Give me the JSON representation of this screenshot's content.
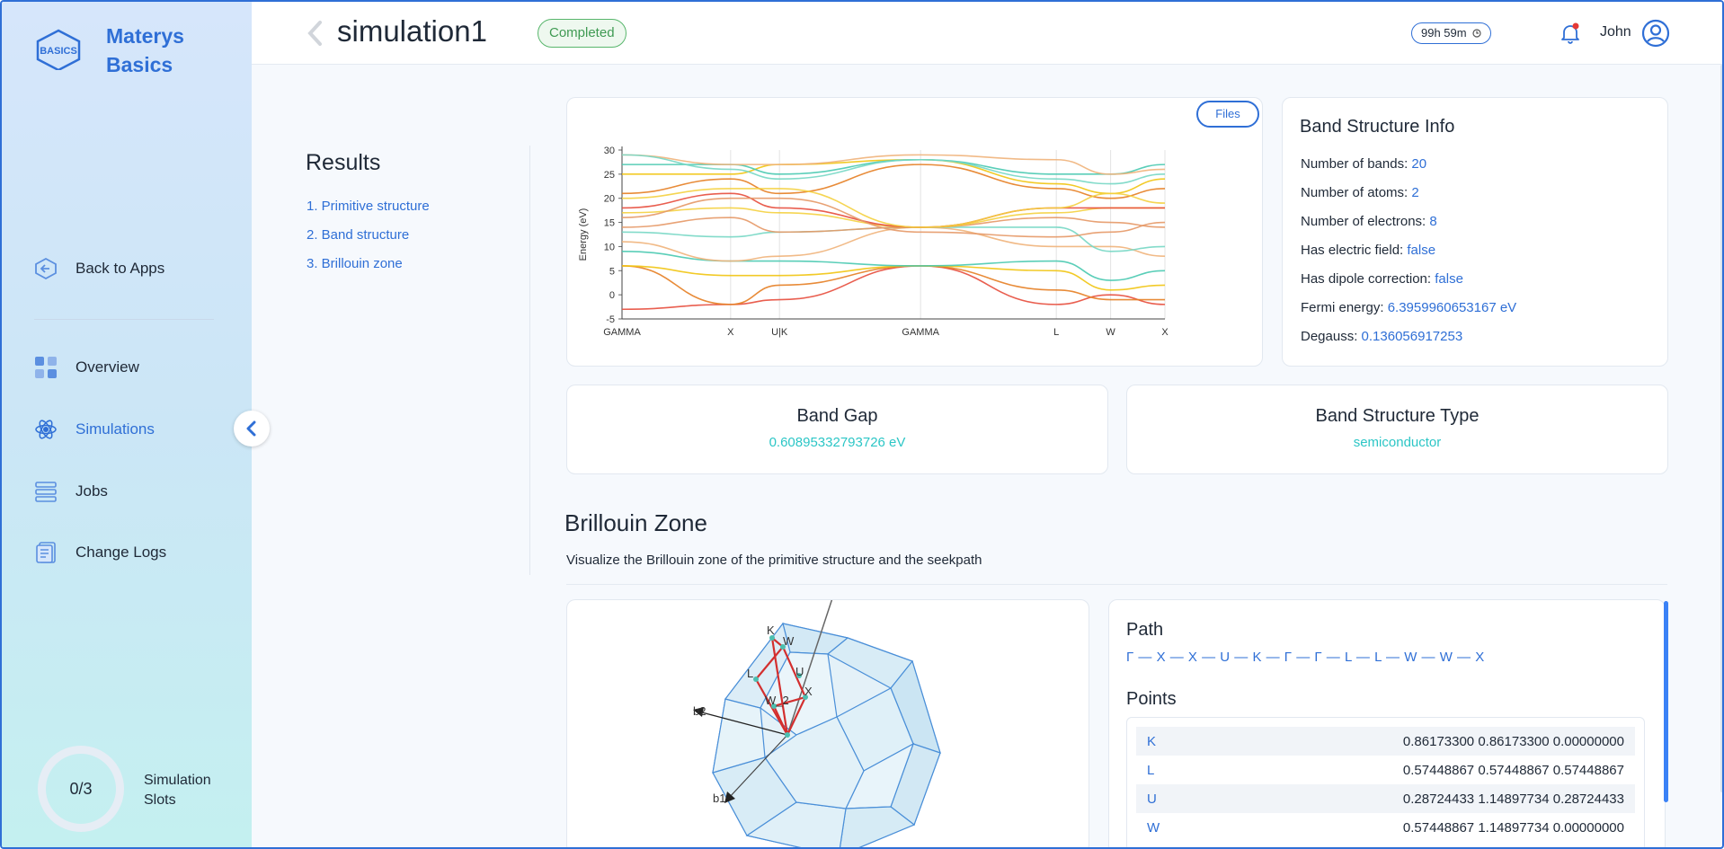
{
  "brand": {
    "logo_text": "BASICS",
    "name": "Materys Basics"
  },
  "sidebar": {
    "back": "Back to Apps",
    "items": [
      {
        "label": "Overview",
        "icon": "grid-icon"
      },
      {
        "label": "Simulations",
        "icon": "atom-icon",
        "active": true
      },
      {
        "label": "Jobs",
        "icon": "list-icon"
      },
      {
        "label": "Change Logs",
        "icon": "logs-icon"
      }
    ],
    "slots": {
      "value": "0/3",
      "label": "Simulation Slots"
    }
  },
  "header": {
    "title": "simulation1",
    "status": "Completed",
    "timer": "99h 59m",
    "user": "John"
  },
  "results": {
    "title": "Results",
    "links": [
      "1. Primitive structure",
      "2. Band structure",
      "3. Brillouin zone"
    ]
  },
  "band_chart": {
    "files_button": "Files",
    "ylabel": "Energy (eV)",
    "yticks": [
      "30",
      "25",
      "20",
      "15",
      "10",
      "5",
      "0",
      "-5"
    ],
    "xticks": [
      "GAMMA",
      "X",
      "U|K",
      "GAMMA",
      "L",
      "W",
      "X"
    ]
  },
  "info": {
    "title": "Band Structure Info",
    "rows": [
      {
        "label": "Number of bands: ",
        "value": "20"
      },
      {
        "label": "Number of atoms: ",
        "value": "2"
      },
      {
        "label": "Number of electrons: ",
        "value": "8"
      },
      {
        "label": "Has electric field: ",
        "value": "false"
      },
      {
        "label": "Has dipole correction: ",
        "value": "false"
      },
      {
        "label": "Fermi energy: ",
        "value": "6.3959960653167 eV"
      },
      {
        "label": "Degauss: ",
        "value": "0.136056917253"
      }
    ]
  },
  "band_gap": {
    "title": "Band Gap",
    "value": "0.60895332793726 eV"
  },
  "band_type": {
    "title": "Band Structure Type",
    "value": "semiconductor"
  },
  "brillouin": {
    "title": "Brillouin Zone",
    "desc": "Visualize the Brillouin zone of the primitive structure and the seekpath",
    "labels": [
      "b2",
      "b1",
      "K",
      "W",
      "U",
      "L",
      "W_2",
      "X"
    ],
    "path_title": "Path",
    "path": "Γ — X — X — U — K — Γ — Γ — L — L — W — W — X",
    "points_title": "Points",
    "points": [
      {
        "k": "K",
        "coords": "0.86173300 0.86173300 0.00000000"
      },
      {
        "k": "L",
        "coords": "0.57448867 0.57448867 0.57448867"
      },
      {
        "k": "U",
        "coords": "0.28724433 1.14897734 0.28724433"
      },
      {
        "k": "W",
        "coords": "0.57448867 1.14897734 0.00000000"
      }
    ]
  },
  "colors": {
    "accent": "#2f6fd6",
    "teal": "#2cc6c6",
    "success": "#3f9a53"
  }
}
